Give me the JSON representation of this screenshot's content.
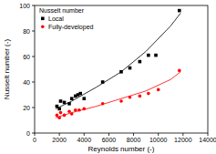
{
  "chart_data": {
    "type": "scatter",
    "x_label": "Reynolds number (-)",
    "y_label": "Nusselt number (-)",
    "legend_title": "Nusselt number",
    "legend": "top-left",
    "grid": false,
    "xlim": [
      0,
      14000
    ],
    "xticks": [
      0,
      2000,
      4000,
      6000,
      8000,
      10000,
      12000,
      14000
    ],
    "ylim": [
      0,
      100
    ],
    "yticks": [
      0,
      20,
      40,
      60,
      80,
      100
    ],
    "series": [
      {
        "name": "Local",
        "type": "scatter",
        "color": "#000000",
        "marker": "square",
        "x": [
          1800,
          2000,
          2100,
          2400,
          2800,
          3000,
          3300,
          3500,
          3700,
          4000,
          5500,
          7000,
          7700,
          8500,
          9200,
          9800,
          11700
        ],
        "values": [
          21,
          19,
          25,
          24,
          23,
          27,
          29,
          30,
          31,
          27,
          40,
          48,
          51,
          56,
          61,
          61,
          96
        ]
      },
      {
        "name": "Fully-developed",
        "type": "scatter",
        "color": "#ff0000",
        "marker": "circle",
        "x": [
          1800,
          2000,
          2100,
          2400,
          2800,
          3000,
          3300,
          3600,
          4000,
          5500,
          7000,
          7700,
          8500,
          9200,
          10000,
          11700
        ],
        "values": [
          14,
          12,
          16,
          14,
          17,
          15,
          18,
          18,
          19,
          23,
          25,
          28,
          29,
          31,
          34,
          49
        ]
      },
      {
        "type": "line",
        "color": "#000000",
        "line_style": "solid",
        "x": [
          1700,
          3000,
          5000,
          7000,
          9000,
          11000,
          11800
        ],
        "values": [
          19,
          25,
          36,
          48,
          64,
          84,
          94
        ]
      },
      {
        "type": "line",
        "color": "#ff0000",
        "line_style": "solid",
        "x": [
          1700,
          3000,
          5000,
          7000,
          9000,
          11000,
          11800
        ],
        "values": [
          12,
          16,
          21,
          27,
          33,
          42,
          48
        ]
      }
    ]
  }
}
